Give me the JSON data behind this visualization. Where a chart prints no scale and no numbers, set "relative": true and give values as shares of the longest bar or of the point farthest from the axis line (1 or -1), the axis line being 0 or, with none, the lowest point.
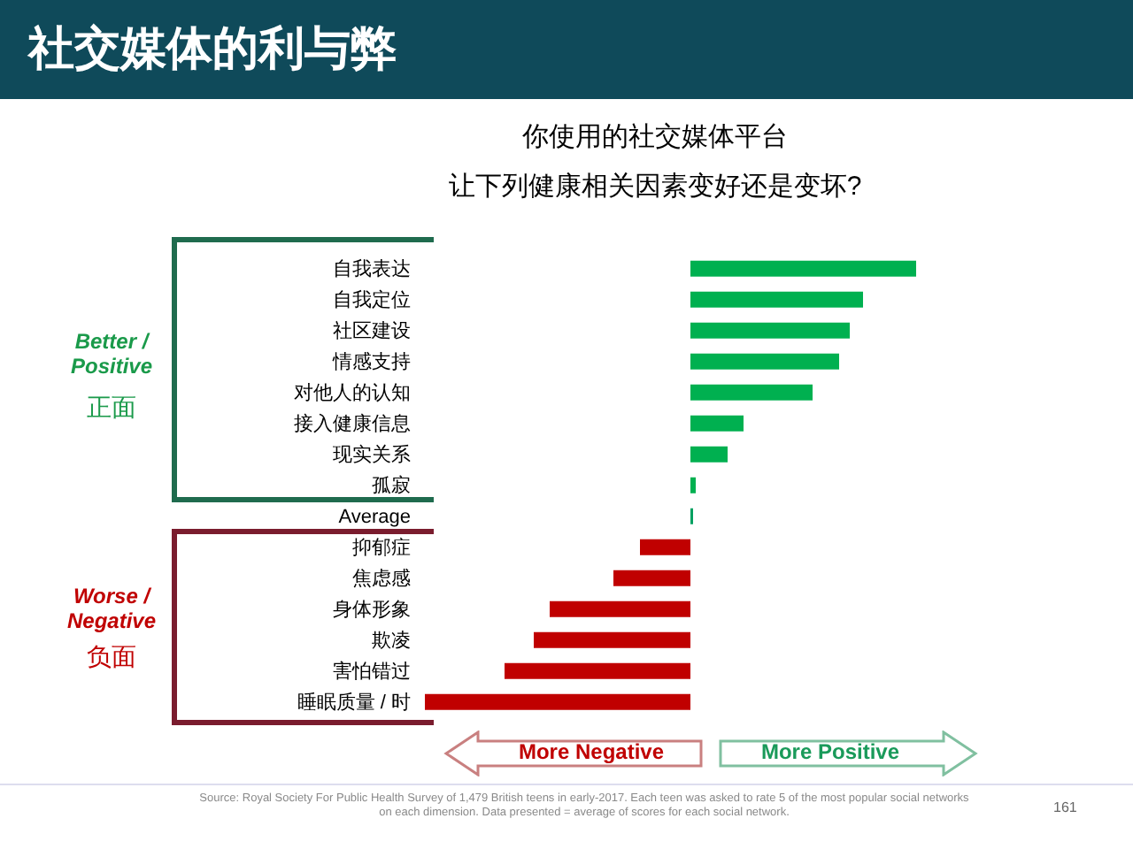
{
  "chart_data": {
    "type": "bar",
    "orientation": "horizontal",
    "relative": true,
    "title": "社交媒体的利与弊",
    "subtitle": "你使用的社交媒体平台",
    "categories": [
      "自我表达",
      "自我定位",
      "社区建设",
      "情感支持",
      "对他人的认知",
      "接入健康信息",
      "现实关系",
      "孤寂",
      "Average",
      "抑郁症",
      "焦虑感",
      "身体形象",
      "欺凌",
      "害怕错过",
      "睡眠质量 / 时"
    ],
    "values": [
      0.85,
      0.65,
      0.6,
      0.56,
      0.46,
      0.2,
      0.14,
      0.02,
      0.01,
      -0.19,
      -0.29,
      -0.53,
      -0.59,
      -0.7,
      -1
    ],
    "colors": [
      "#00b050",
      "#00b050",
      "#00b050",
      "#00b050",
      "#00b050",
      "#00b050",
      "#00b050",
      "#00b050",
      "#00a060",
      "#c00000",
      "#c00000",
      "#c00000",
      "#c00000",
      "#c00000",
      "#c00000"
    ],
    "annotations": [
      "Better / Positive",
      "正面",
      "Worse / Negative",
      "负面",
      "More Negative",
      "More Positive",
      "Source: Royal Society For Public Health Survey of 1,479 British teens in early-2017. Each teen was asked to rate 5 of the most popular social networks on each dimension. Data presented = average of scores for each social network.",
      "161",
      "让下列健康相关因素变好还是变坏?"
    ]
  }
}
